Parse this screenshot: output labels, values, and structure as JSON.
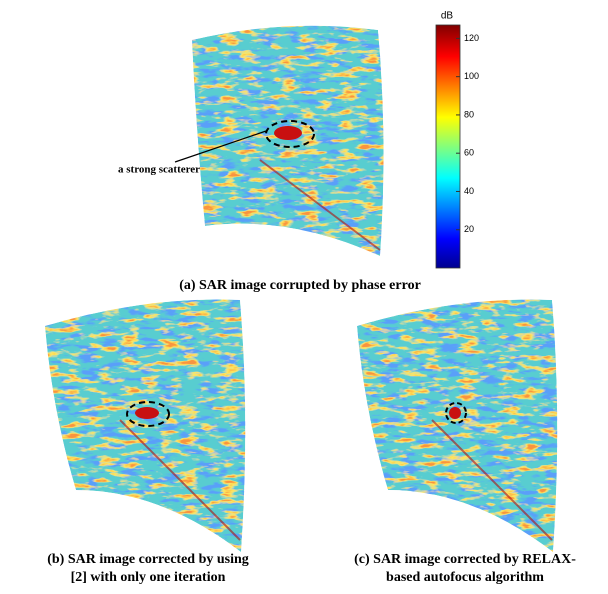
{
  "panel_a": {
    "annotation": "a strong scatterer",
    "caption": "(a) SAR image corrupted by phase error"
  },
  "colorbar": {
    "label": "dB",
    "lim": [
      0,
      127
    ],
    "ticks": [
      20,
      40,
      60,
      80,
      100,
      120
    ]
  },
  "panel_b": {
    "caption": [
      "(b) SAR image corrected by using",
      "[2] with only one iteration"
    ]
  },
  "panel_c": {
    "caption": [
      "(c) SAR image corrected by RELAX-",
      "based autofocus algorithm"
    ]
  }
}
